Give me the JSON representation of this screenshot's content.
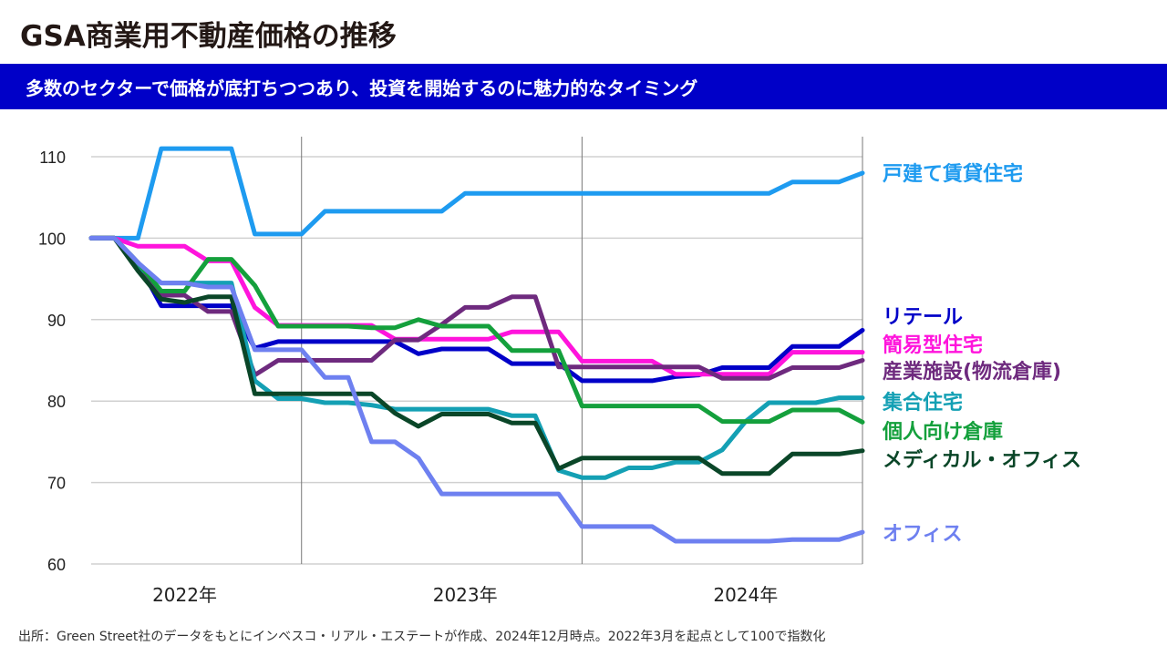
{
  "title": "GSA商業用不動産価格の推移",
  "subtitle": "多数のセクターで価格が底打ちつつあり、投資を開始するのに魅力的なタイミング",
  "source_note": "出所：Green Street社のデータをもとにインベスコ・リアル・エステートが作成、2024年12月時点。2022年3月を起点として100で指数化",
  "chart_data": {
    "type": "line",
    "x_start": "2022-03",
    "x_end": "2024-12",
    "x_tick_labels": [
      "2022年",
      "2023年",
      "2024年"
    ],
    "x_tick_label_months": [
      "2022-07",
      "2023-07",
      "2024-07"
    ],
    "year_dividers": [
      "2022-12",
      "2023-12",
      "2024-12"
    ],
    "ylim": [
      60,
      110
    ],
    "yticks": [
      60,
      70,
      80,
      90,
      100,
      110
    ],
    "grid": true,
    "legend_placement": "right",
    "series": [
      {
        "name": "戸建て賃貸住宅",
        "color": "#1e9bf0",
        "values": [
          100,
          100,
          100,
          111,
          111,
          111,
          111,
          100.5,
          100.5,
          100.5,
          103.3,
          103.3,
          103.3,
          103.3,
          103.3,
          103.3,
          105.5,
          105.5,
          105.5,
          105.5,
          105.5,
          105.5,
          105.5,
          105.5,
          105.5,
          105.5,
          105.5,
          105.5,
          105.5,
          105.5,
          106.9,
          106.9,
          106.9,
          108
        ]
      },
      {
        "name": "リテール",
        "color": "#0000c8",
        "values": [
          100,
          100,
          97,
          91.7,
          91.7,
          91.7,
          91.7,
          86.5,
          87.3,
          87.3,
          87.3,
          87.3,
          87.3,
          87.3,
          85.8,
          86.4,
          86.4,
          86.4,
          84.6,
          84.6,
          84.6,
          82.5,
          82.5,
          82.5,
          82.5,
          83,
          83.2,
          84.1,
          84.1,
          84.1,
          86.7,
          86.7,
          86.7,
          88.7
        ]
      },
      {
        "name": "簡易型住宅",
        "color": "#ff14dc",
        "values": [
          100,
          100,
          99,
          99,
          99,
          97.2,
          97.2,
          91.5,
          89.3,
          89.3,
          89.3,
          89.3,
          89.3,
          87.6,
          87.6,
          87.6,
          87.6,
          87.6,
          88.5,
          88.5,
          88.5,
          84.9,
          84.9,
          84.9,
          84.9,
          83.3,
          83.3,
          83.3,
          83.3,
          83.3,
          86,
          86,
          86,
          86
        ]
      },
      {
        "name": "産業施設(物流倉庫)",
        "color": "#6e2a7e",
        "values": [
          100,
          100,
          96.5,
          93,
          93,
          91,
          91,
          83.2,
          85,
          85,
          85,
          85,
          85,
          87.5,
          87.5,
          89.4,
          91.5,
          91.5,
          92.8,
          92.8,
          84.2,
          84.2,
          84.2,
          84.2,
          84.2,
          84.2,
          84.2,
          82.8,
          82.8,
          82.8,
          84.1,
          84.1,
          84.1,
          85
        ]
      },
      {
        "name": "集合住宅",
        "color": "#14a0b4",
        "values": [
          100,
          100,
          96.5,
          94.5,
          94.5,
          94.5,
          94.5,
          82.5,
          80.3,
          80.3,
          79.8,
          79.8,
          79.5,
          79,
          79,
          79,
          79,
          79,
          78.2,
          78.2,
          71.5,
          70.6,
          70.6,
          71.8,
          71.8,
          72.5,
          72.5,
          74,
          77.5,
          79.8,
          79.8,
          79.8,
          80.4,
          80.4
        ]
      },
      {
        "name": "個人向け倉庫",
        "color": "#14a03c",
        "values": [
          100,
          100,
          97,
          93.5,
          93.5,
          97.4,
          97.4,
          94.2,
          89.2,
          89.2,
          89.2,
          89.2,
          89,
          89,
          90,
          89.2,
          89.2,
          89.2,
          86.2,
          86.2,
          86.2,
          79.4,
          79.4,
          79.4,
          79.4,
          79.4,
          79.4,
          77.5,
          77.5,
          77.5,
          78.9,
          78.9,
          78.9,
          77.4
        ]
      },
      {
        "name": "メディカル・オフィス",
        "color": "#0a4628",
        "values": [
          100,
          100,
          96,
          92.5,
          92.1,
          92.8,
          92.8,
          80.9,
          80.9,
          80.9,
          80.9,
          80.9,
          80.9,
          78.5,
          76.9,
          78.4,
          78.4,
          78.4,
          77.3,
          77.3,
          71.7,
          73,
          73,
          73,
          73,
          73,
          73,
          71.1,
          71.1,
          71.1,
          73.5,
          73.5,
          73.5,
          73.9
        ]
      },
      {
        "name": "オフィス",
        "color": "#6e80f0",
        "values": [
          100,
          100,
          97,
          94.5,
          94.5,
          94,
          94,
          86.3,
          86.3,
          86.3,
          82.9,
          82.9,
          75,
          75,
          73,
          68.6,
          68.6,
          68.6,
          68.6,
          68.6,
          68.6,
          64.6,
          64.6,
          64.6,
          64.6,
          62.8,
          62.8,
          62.8,
          62.8,
          62.8,
          63,
          63,
          63,
          63.9
        ]
      }
    ]
  }
}
